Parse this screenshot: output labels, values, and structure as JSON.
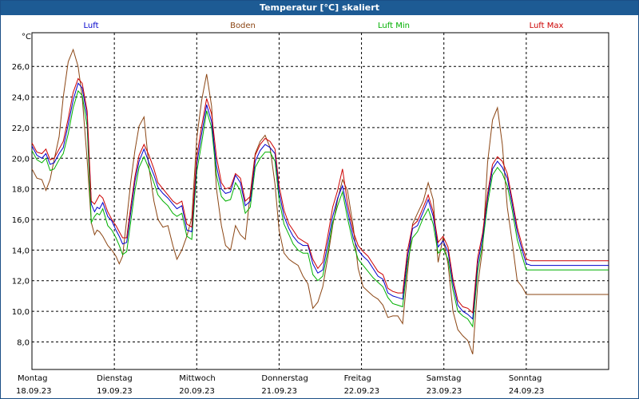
{
  "window": {
    "title": "Temperatur [°C] skaliert"
  },
  "colors": {
    "title_bg": "#1d5b94",
    "grid": "#000000"
  },
  "chart_data": {
    "type": "line",
    "title": "Temperatur [°C] skaliert",
    "ylabel": "°C",
    "xlabel": "",
    "ylim": [
      6.2,
      28.2
    ],
    "yticks": [
      "8,0",
      "10,0",
      "12,0",
      "14,0",
      "16,0",
      "18,0",
      "20,0",
      "22,0",
      "24,0",
      "26,0"
    ],
    "ytick_values": [
      8,
      10,
      12,
      14,
      16,
      18,
      20,
      22,
      24,
      26
    ],
    "xlim": [
      0,
      7
    ],
    "days": [
      {
        "day": "Montag",
        "date": "18.09.23"
      },
      {
        "day": "Dienstag",
        "date": "19.09.23"
      },
      {
        "day": "Mittwoch",
        "date": "20.09.23"
      },
      {
        "day": "Donnerstag",
        "date": "21.09.23"
      },
      {
        "day": "Freitag",
        "date": "22.09.23"
      },
      {
        "day": "Samstag",
        "date": "23.09.23"
      },
      {
        "day": "Sonntag",
        "date": "24.09.23"
      }
    ],
    "grid": true,
    "legend_position": "top",
    "series": [
      {
        "name": "Luft",
        "color": "#0000cc",
        "x": [
          0,
          0.06,
          0.12,
          0.17,
          0.22,
          0.27,
          0.33,
          0.38,
          0.44,
          0.5,
          0.56,
          0.61,
          0.67,
          0.72,
          0.76,
          0.79,
          0.82,
          0.86,
          0.92,
          0.97,
          1.02,
          1.06,
          1.1,
          1.15,
          1.2,
          1.25,
          1.3,
          1.36,
          1.42,
          1.48,
          1.53,
          1.59,
          1.65,
          1.71,
          1.76,
          1.82,
          1.88,
          1.94,
          2.0,
          2.06,
          2.12,
          2.18,
          2.24,
          2.3,
          2.35,
          2.41,
          2.47,
          2.53,
          2.59,
          2.65,
          2.71,
          2.77,
          2.83,
          2.89,
          2.95,
          3.0,
          3.06,
          3.12,
          3.17,
          3.23,
          3.29,
          3.35,
          3.41,
          3.47,
          3.53,
          3.59,
          3.65,
          3.71,
          3.77,
          3.83,
          3.9,
          3.96,
          4.02,
          4.08,
          4.14,
          4.2,
          4.26,
          4.32,
          4.38,
          4.44,
          4.5,
          4.56,
          4.62,
          4.68,
          4.75,
          4.81,
          4.87,
          4.93,
          4.99,
          5.05,
          5.11,
          5.17,
          5.23,
          5.29,
          5.35,
          5.41,
          5.47,
          5.53,
          5.59,
          5.65,
          5.71,
          5.77,
          5.83,
          5.89,
          5.95,
          6.0,
          6.06,
          6.12,
          6.18,
          6.24,
          6.3,
          6.36,
          6.42,
          6.48,
          6.54,
          6.6,
          6.66,
          6.72,
          6.78,
          6.84,
          6.9,
          6.96,
          7.0
        ],
        "y": [
          20.8,
          20.2,
          20.0,
          20.3,
          19.6,
          19.7,
          20.3,
          20.7,
          22.2,
          23.8,
          24.9,
          24.6,
          22.7,
          17.0,
          16.5,
          16.8,
          16.7,
          17.1,
          16.2,
          15.9,
          15.3,
          14.9,
          14.4,
          14.5,
          16.5,
          18.5,
          19.8,
          20.6,
          19.7,
          18.9,
          18.1,
          17.7,
          17.4,
          17.0,
          16.7,
          16.9,
          15.3,
          15.2,
          19.6,
          21.6,
          23.5,
          22.4,
          19.5,
          18.0,
          17.7,
          17.8,
          18.9,
          18.4,
          16.9,
          17.2,
          19.8,
          20.5,
          20.9,
          20.7,
          20.3,
          17.8,
          16.2,
          15.4,
          14.9,
          14.5,
          14.3,
          14.3,
          13.1,
          12.5,
          12.7,
          14.4,
          16.2,
          17.4,
          18.2,
          16.6,
          14.8,
          14.0,
          13.6,
          13.3,
          12.8,
          12.3,
          12.1,
          11.2,
          11.0,
          10.9,
          10.8,
          13.6,
          15.4,
          15.6,
          16.5,
          17.3,
          16.2,
          14.2,
          14.6,
          13.9,
          11.8,
          10.4,
          10.0,
          9.8,
          9.5,
          13.1,
          14.8,
          17.4,
          19.3,
          19.8,
          19.4,
          18.7,
          17.0,
          15.2,
          14.0,
          13.1,
          13.0,
          13.0,
          13.0,
          13.0,
          13.0,
          13.0,
          13.0,
          13.0,
          13.0,
          13.0,
          13.0,
          13.0,
          13.0,
          13.0,
          13.0,
          13.0,
          13.0
        ]
      },
      {
        "name": "Boden",
        "color": "#8b4513",
        "x": [
          0,
          0.06,
          0.12,
          0.17,
          0.22,
          0.27,
          0.33,
          0.38,
          0.44,
          0.5,
          0.56,
          0.61,
          0.67,
          0.72,
          0.76,
          0.79,
          0.82,
          0.86,
          0.92,
          0.97,
          1.02,
          1.06,
          1.1,
          1.15,
          1.2,
          1.25,
          1.3,
          1.36,
          1.42,
          1.48,
          1.53,
          1.59,
          1.65,
          1.71,
          1.76,
          1.82,
          1.88,
          1.94,
          2.0,
          2.06,
          2.12,
          2.18,
          2.24,
          2.3,
          2.35,
          2.41,
          2.47,
          2.53,
          2.59,
          2.65,
          2.71,
          2.77,
          2.83,
          2.89,
          2.95,
          3.0,
          3.06,
          3.12,
          3.17,
          3.23,
          3.29,
          3.35,
          3.41,
          3.47,
          3.53,
          3.59,
          3.65,
          3.71,
          3.77,
          3.83,
          3.9,
          3.96,
          4.02,
          4.08,
          4.14,
          4.2,
          4.26,
          4.32,
          4.38,
          4.44,
          4.5,
          4.56,
          4.62,
          4.68,
          4.75,
          4.81,
          4.87,
          4.93,
          4.99,
          5.05,
          5.11,
          5.17,
          5.23,
          5.29,
          5.35,
          5.41,
          5.47,
          5.53,
          5.59,
          5.65,
          5.71,
          5.77,
          5.83,
          5.89,
          5.95,
          6.0,
          6.06,
          6.12,
          6.18,
          6.24,
          6.3,
          6.36,
          6.42,
          6.48,
          6.54,
          6.6,
          6.66,
          6.72,
          6.78,
          6.84,
          6.9,
          6.96,
          7.0
        ],
        "y": [
          19.3,
          18.7,
          18.6,
          17.9,
          18.6,
          19.9,
          21.4,
          24.0,
          26.3,
          27.1,
          26.0,
          24.0,
          19.9,
          15.8,
          15.0,
          15.3,
          15.2,
          14.9,
          14.3,
          14.0,
          13.6,
          13.1,
          13.6,
          16.0,
          18.5,
          20.5,
          22.1,
          22.7,
          19.4,
          17.2,
          16.0,
          15.5,
          15.6,
          14.3,
          13.4,
          14.0,
          14.9,
          16.1,
          21.3,
          23.8,
          25.5,
          23.4,
          18.0,
          15.6,
          14.3,
          14.0,
          15.6,
          15.0,
          14.7,
          17.7,
          20.3,
          21.1,
          21.5,
          20.7,
          18.3,
          15.3,
          13.8,
          13.4,
          13.2,
          13.0,
          12.3,
          11.8,
          10.2,
          10.6,
          11.6,
          13.5,
          15.6,
          17.3,
          18.6,
          17.9,
          15.5,
          12.8,
          11.6,
          11.3,
          11.0,
          10.8,
          10.4,
          9.6,
          9.7,
          9.7,
          9.2,
          12.6,
          15.7,
          16.4,
          17.2,
          18.4,
          17.3,
          13.2,
          14.8,
          13.1,
          10.0,
          8.8,
          8.4,
          8.1,
          7.2,
          11.7,
          14.1,
          19.7,
          22.5,
          23.3,
          20.9,
          16.8,
          14.5,
          12.0,
          11.6,
          11.1,
          11.1,
          11.1,
          11.1,
          11.1,
          11.1,
          11.1,
          11.1,
          11.1,
          11.1,
          11.1,
          11.1,
          11.1,
          11.1,
          11.1,
          11.1,
          11.1,
          11.1
        ]
      },
      {
        "name": "Luft Min",
        "color": "#00b000",
        "x": [
          0,
          0.06,
          0.12,
          0.17,
          0.22,
          0.27,
          0.33,
          0.38,
          0.44,
          0.5,
          0.56,
          0.61,
          0.67,
          0.72,
          0.76,
          0.79,
          0.82,
          0.86,
          0.92,
          0.97,
          1.02,
          1.06,
          1.1,
          1.15,
          1.2,
          1.25,
          1.3,
          1.36,
          1.42,
          1.48,
          1.53,
          1.59,
          1.65,
          1.71,
          1.76,
          1.82,
          1.88,
          1.94,
          2.0,
          2.06,
          2.12,
          2.18,
          2.24,
          2.3,
          2.35,
          2.41,
          2.47,
          2.53,
          2.59,
          2.65,
          2.71,
          2.77,
          2.83,
          2.89,
          2.95,
          3.0,
          3.06,
          3.12,
          3.17,
          3.23,
          3.29,
          3.35,
          3.41,
          3.47,
          3.53,
          3.59,
          3.65,
          3.71,
          3.77,
          3.83,
          3.9,
          3.96,
          4.02,
          4.08,
          4.14,
          4.2,
          4.26,
          4.32,
          4.38,
          4.44,
          4.5,
          4.56,
          4.62,
          4.68,
          4.75,
          4.81,
          4.87,
          4.93,
          4.99,
          5.05,
          5.11,
          5.17,
          5.23,
          5.29,
          5.35,
          5.41,
          5.47,
          5.53,
          5.59,
          5.65,
          5.71,
          5.77,
          5.83,
          5.89,
          5.95,
          6.0,
          6.06,
          6.12,
          6.18,
          6.24,
          6.3,
          6.36,
          6.42,
          6.48,
          6.54,
          6.6,
          6.66,
          6.72,
          6.78,
          6.84,
          6.9,
          6.96,
          7.0
        ],
        "y": [
          20.5,
          19.9,
          19.7,
          20.0,
          19.2,
          19.3,
          19.9,
          20.3,
          21.6,
          23.3,
          24.4,
          24.1,
          22.1,
          15.8,
          16.2,
          16.4,
          16.3,
          16.7,
          15.6,
          15.3,
          14.8,
          14.3,
          13.7,
          13.9,
          15.9,
          17.9,
          19.4,
          20.1,
          19.3,
          18.4,
          17.6,
          17.2,
          16.9,
          16.4,
          16.2,
          16.4,
          14.9,
          14.7,
          19.1,
          21.0,
          23.1,
          22.0,
          18.9,
          17.5,
          17.2,
          17.3,
          18.4,
          17.9,
          16.4,
          16.8,
          19.4,
          20.0,
          20.4,
          20.4,
          19.8,
          17.3,
          15.7,
          15.0,
          14.4,
          14.0,
          13.8,
          13.8,
          12.4,
          12.0,
          12.3,
          13.9,
          15.8,
          16.9,
          17.8,
          16.1,
          14.4,
          13.4,
          13.0,
          12.6,
          12.2,
          11.9,
          11.6,
          10.9,
          10.5,
          10.4,
          10.3,
          13.2,
          14.8,
          15.2,
          16.1,
          16.7,
          15.7,
          13.8,
          14.1,
          13.4,
          11.4,
          10.0,
          9.7,
          9.5,
          9.0,
          12.6,
          14.4,
          17.0,
          18.9,
          19.4,
          19.0,
          18.2,
          16.6,
          14.7,
          13.6,
          12.7,
          12.7,
          12.7,
          12.7,
          12.7,
          12.7,
          12.7,
          12.7,
          12.7,
          12.7,
          12.7,
          12.7,
          12.7,
          12.7,
          12.7,
          12.7,
          12.7,
          12.7
        ]
      },
      {
        "name": "Luft Max",
        "color": "#cc0000",
        "x": [
          0,
          0.06,
          0.12,
          0.17,
          0.22,
          0.27,
          0.33,
          0.38,
          0.44,
          0.5,
          0.56,
          0.61,
          0.67,
          0.72,
          0.76,
          0.79,
          0.82,
          0.86,
          0.92,
          0.97,
          1.02,
          1.06,
          1.1,
          1.15,
          1.2,
          1.25,
          1.3,
          1.36,
          1.42,
          1.48,
          1.53,
          1.59,
          1.65,
          1.71,
          1.76,
          1.82,
          1.88,
          1.94,
          2.0,
          2.06,
          2.12,
          2.18,
          2.24,
          2.3,
          2.35,
          2.41,
          2.47,
          2.53,
          2.59,
          2.65,
          2.71,
          2.77,
          2.83,
          2.89,
          2.95,
          3.0,
          3.06,
          3.12,
          3.17,
          3.23,
          3.29,
          3.35,
          3.41,
          3.47,
          3.53,
          3.59,
          3.65,
          3.71,
          3.77,
          3.83,
          3.9,
          3.96,
          4.02,
          4.08,
          4.14,
          4.2,
          4.26,
          4.32,
          4.38,
          4.44,
          4.5,
          4.56,
          4.62,
          4.68,
          4.75,
          4.81,
          4.87,
          4.93,
          4.99,
          5.05,
          5.11,
          5.17,
          5.23,
          5.29,
          5.35,
          5.41,
          5.47,
          5.53,
          5.59,
          5.65,
          5.71,
          5.77,
          5.83,
          5.89,
          5.95,
          6.0,
          6.06,
          6.12,
          6.18,
          6.24,
          6.3,
          6.36,
          6.42,
          6.48,
          6.54,
          6.6,
          6.66,
          6.72,
          6.78,
          6.84,
          6.9,
          6.96,
          7.0
        ],
        "y": [
          21.0,
          20.4,
          20.3,
          20.6,
          19.9,
          20.0,
          20.6,
          21.1,
          22.6,
          24.3,
          25.2,
          24.9,
          23.1,
          17.2,
          17.0,
          17.3,
          17.6,
          17.4,
          16.5,
          16.0,
          15.6,
          15.2,
          14.8,
          14.8,
          16.9,
          18.8,
          20.2,
          20.9,
          20.2,
          19.3,
          18.4,
          18.0,
          17.6,
          17.2,
          17.0,
          17.2,
          15.7,
          15.5,
          20.1,
          22.1,
          23.9,
          22.9,
          20.1,
          18.4,
          18.0,
          18.1,
          19.0,
          18.7,
          17.2,
          17.5,
          20.2,
          20.9,
          21.3,
          21.1,
          20.6,
          18.2,
          16.6,
          15.7,
          15.3,
          14.8,
          14.6,
          14.4,
          13.4,
          12.8,
          13.2,
          14.9,
          16.8,
          17.9,
          19.3,
          17.1,
          15.2,
          14.3,
          13.9,
          13.6,
          13.1,
          12.6,
          12.4,
          11.5,
          11.3,
          11.2,
          11.2,
          14.0,
          15.6,
          15.9,
          16.8,
          17.6,
          16.5,
          14.5,
          14.9,
          14.2,
          12.1,
          10.7,
          10.3,
          10.2,
          9.9,
          13.5,
          15.1,
          17.7,
          19.6,
          20.1,
          19.8,
          19.0,
          17.3,
          15.5,
          14.3,
          13.4,
          13.3,
          13.3,
          13.3,
          13.3,
          13.3,
          13.3,
          13.3,
          13.3,
          13.3,
          13.3,
          13.3,
          13.3,
          13.3,
          13.3,
          13.3,
          13.3,
          13.3
        ]
      }
    ]
  }
}
